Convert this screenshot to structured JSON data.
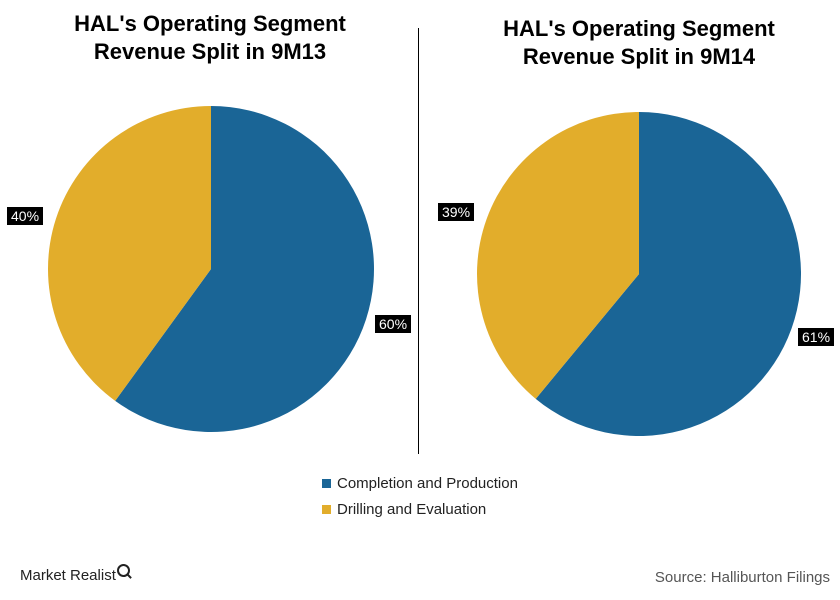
{
  "chart_data": [
    {
      "type": "pie",
      "title": [
        "HAL's Operating Segment",
        "Revenue Split in 9M13"
      ],
      "slices": [
        {
          "label": "Completion and Production",
          "value": 60,
          "display": "60%",
          "color": "#1a6596"
        },
        {
          "label": "Drilling and Evaluation",
          "value": 40,
          "display": "40%",
          "color": "#e2ad2b"
        }
      ]
    },
    {
      "type": "pie",
      "title": [
        "HAL's Operating Segment",
        "Revenue Split in 9M14"
      ],
      "slices": [
        {
          "label": "Completion and Production",
          "value": 61,
          "display": "61%",
          "color": "#1a6596"
        },
        {
          "label": "Drilling and Evaluation",
          "value": 39,
          "display": "39%",
          "color": "#e2ad2b"
        }
      ]
    }
  ],
  "legend": [
    {
      "label": "Completion and Production",
      "color": "#1a6596"
    },
    {
      "label": "Drilling and Evaluation",
      "color": "#e2ad2b"
    }
  ],
  "footer": {
    "brand": "Market Realist",
    "source": "Source: Halliburton Filings"
  }
}
